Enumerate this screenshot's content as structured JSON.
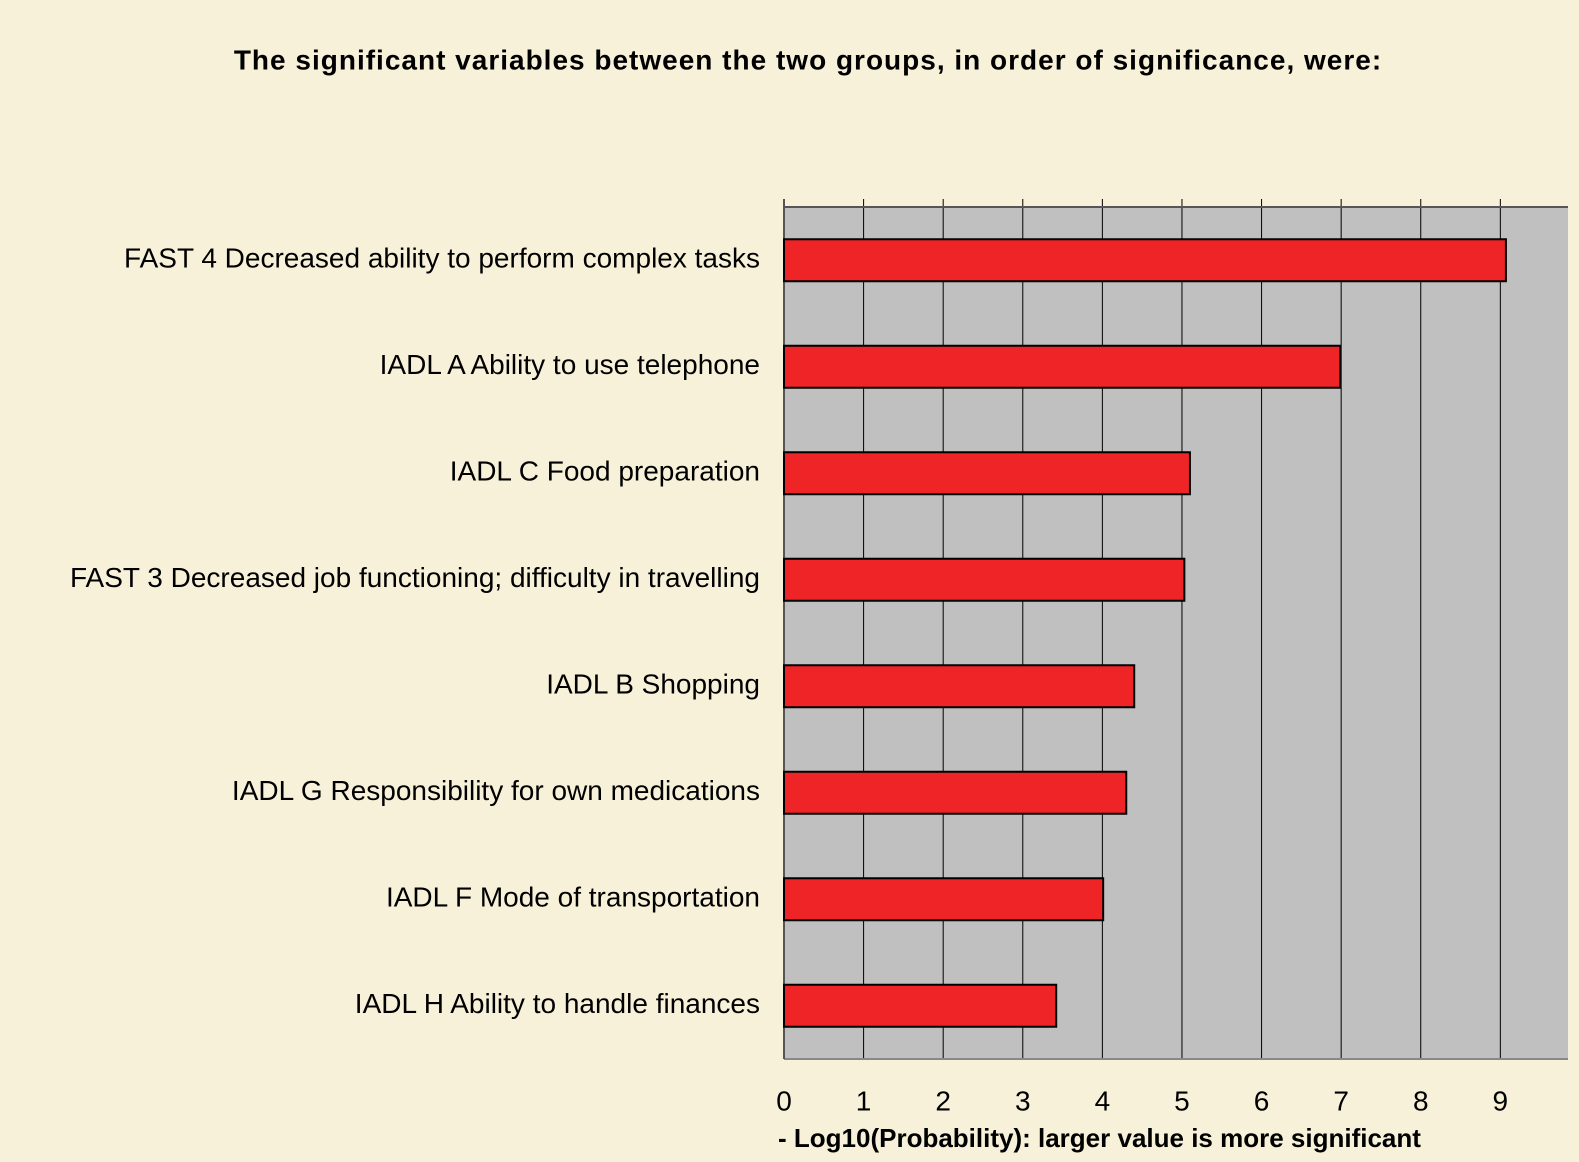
{
  "chart_data": {
    "type": "barh",
    "title": "The significant variables between the two groups, in order of significance, were:",
    "categories": [
      "FAST 4 Decreased ability to perform complex tasks",
      "IADL A Ability to use telephone",
      "IADL C Food preparation",
      "FAST 3 Decreased job functioning; difficulty in travelling",
      "IADL B Shopping",
      "IADL G Responsibility for own medications",
      "IADL F Mode of transportation",
      "IADL H Ability to handle finances"
    ],
    "values": [
      9.07,
      6.99,
      5.1,
      5.03,
      4.4,
      4.3,
      4.01,
      3.42
    ],
    "color": "#ee2427",
    "x_label": "- Log10(Probability): larger value is more significant",
    "xlim": [
      0,
      9.85
    ],
    "xticks": [
      0,
      1,
      2,
      3,
      4,
      5,
      6,
      7,
      8,
      9
    ],
    "grid": true
  }
}
